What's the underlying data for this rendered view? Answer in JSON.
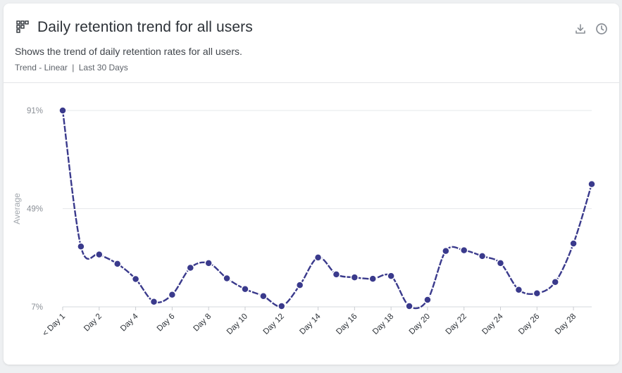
{
  "card": {
    "title": "Daily retention trend for all users",
    "description": "Shows the trend of daily retention rates for all users.",
    "meta": {
      "trend": "Trend - Linear",
      "separator": "|",
      "range": "Last 30 Days"
    },
    "icons": {
      "title": "grid-icon",
      "download": "download-icon",
      "history": "clock-icon"
    }
  },
  "colors": {
    "series": "#3a3a8c",
    "grid": "#e6e8eb",
    "text": "#2d3238"
  },
  "chart_data": {
    "type": "line",
    "title": "Daily retention trend for all users",
    "xlabel": "",
    "ylabel": "Average",
    "ylim": [
      7,
      91
    ],
    "ytick_values": [
      91,
      49,
      7
    ],
    "ytick_labels": [
      "91%",
      "49%",
      "7%"
    ],
    "x": [
      "< Day 1",
      "Day 1",
      "Day 2",
      "Day 3",
      "Day 4",
      "Day 5",
      "Day 6",
      "Day 7",
      "Day 8",
      "Day 9",
      "Day 10",
      "Day 11",
      "Day 12",
      "Day 13",
      "Day 14",
      "Day 15",
      "Day 16",
      "Day 17",
      "Day 18",
      "Day 19",
      "Day 20",
      "Day 21",
      "Day 22",
      "Day 23",
      "Day 24",
      "Day 25",
      "Day 26",
      "Day 27",
      "Day 28",
      "Day 29"
    ],
    "xtick_labels": [
      "< Day 1",
      "Day 2",
      "Day 4",
      "Day 6",
      "Day 8",
      "Day 10",
      "Day 12",
      "Day 14",
      "Day 16",
      "Day 18",
      "Day 20",
      "Day 22",
      "Day 24",
      "Day 26",
      "Day 28"
    ],
    "series": [
      {
        "name": "Average",
        "values": [
          91,
          32.8,
          29.4,
          25.4,
          18.9,
          9.2,
          12.2,
          23.7,
          25.7,
          19.2,
          14.6,
          11.6,
          7.3,
          16.3,
          28.1,
          20.9,
          19.6,
          19.0,
          20.2,
          7.3,
          10.0,
          30.9,
          31.2,
          28.7,
          25.7,
          14.3,
          12.8,
          17.6,
          34.1,
          59.5
        ]
      }
    ]
  }
}
